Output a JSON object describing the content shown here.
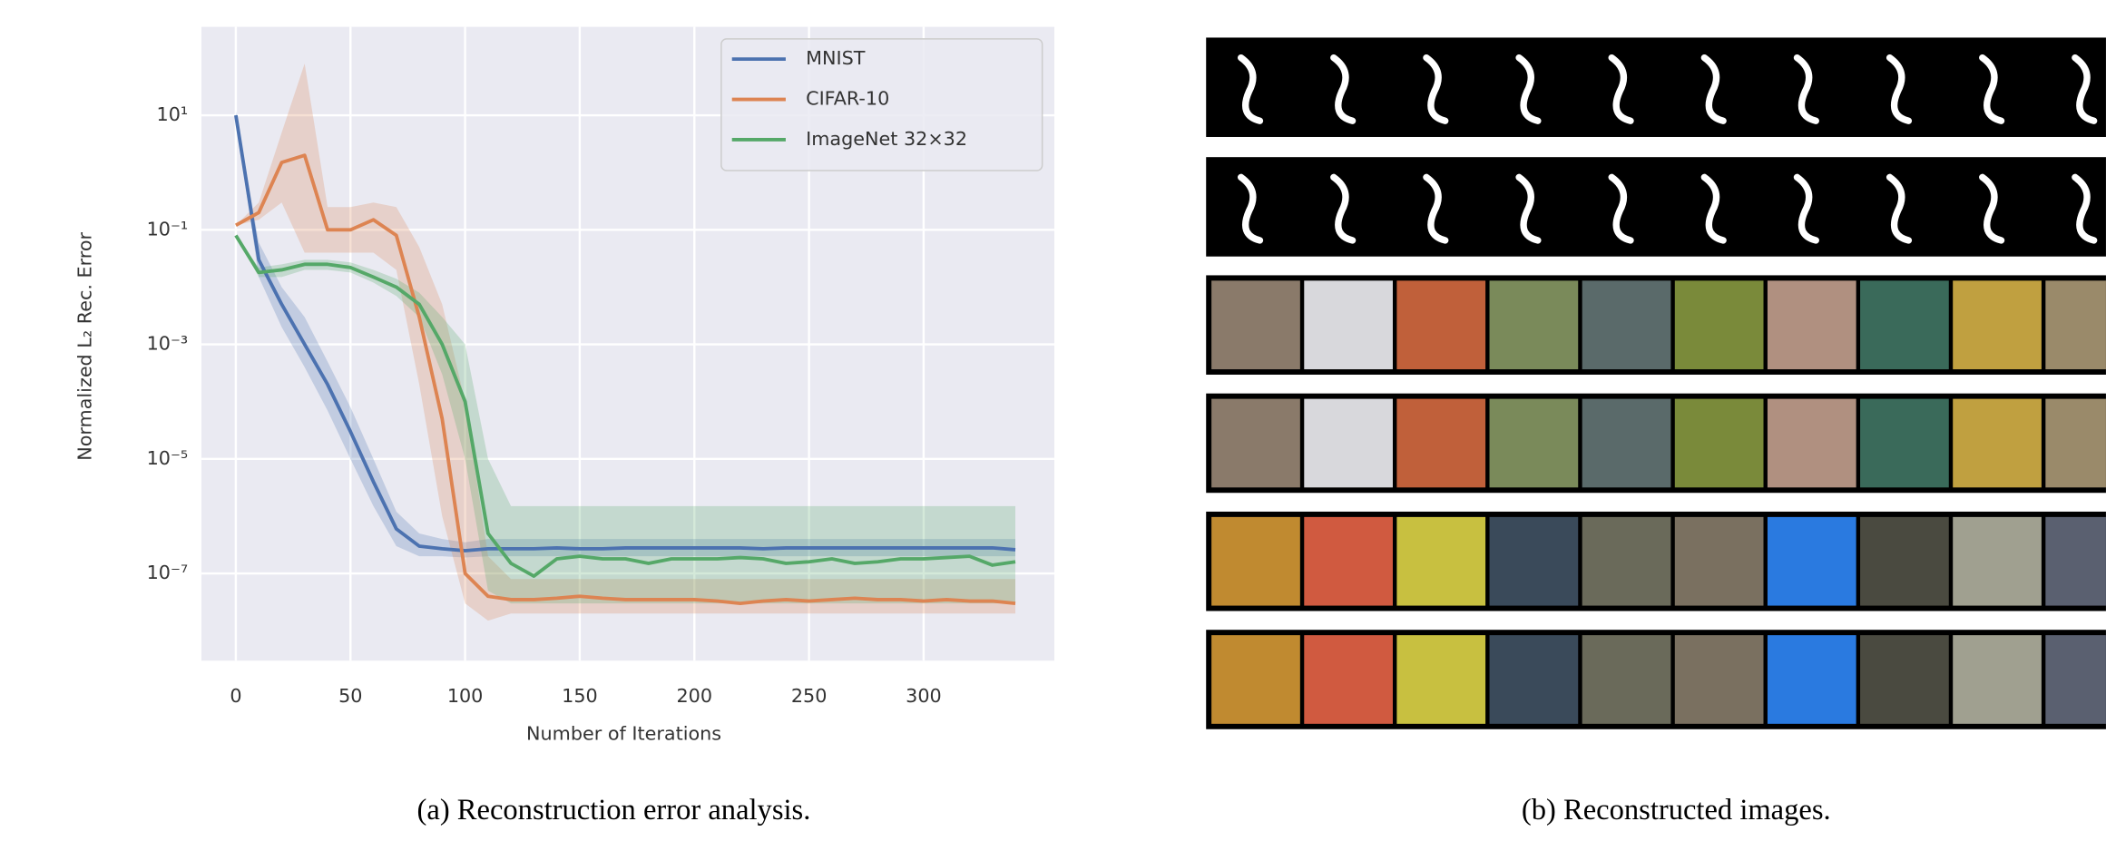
{
  "chart_data": {
    "type": "line",
    "y_label": "Normalized L₂ Rec. Error",
    "x_label": "Number of Iterations",
    "y_scale": "log",
    "grid": true,
    "legend": "upper right",
    "xlim": [
      -15,
      357
    ],
    "ylim": [
      3e-09,
      350
    ],
    "xticks": [
      0,
      50,
      100,
      150,
      200,
      250,
      300
    ],
    "yticks": [
      {
        "value": 10,
        "label": "10¹"
      },
      {
        "value": 0.1,
        "label": "10⁻¹"
      },
      {
        "value": 0.001,
        "label": "10⁻³"
      },
      {
        "value": 1e-05,
        "label": "10⁻⁵"
      },
      {
        "value": 1e-07,
        "label": "10⁻⁷"
      }
    ],
    "x": [
      0,
      10,
      20,
      30,
      40,
      50,
      60,
      70,
      80,
      90,
      100,
      110,
      120,
      130,
      140,
      150,
      160,
      170,
      180,
      190,
      200,
      210,
      220,
      230,
      240,
      250,
      260,
      270,
      280,
      290,
      300,
      310,
      320,
      330,
      340
    ],
    "series": [
      {
        "name": "MNIST",
        "color": "#4c72b0",
        "values": [
          10,
          0.03,
          0.005,
          0.001,
          0.0002,
          3e-05,
          4e-06,
          6e-07,
          3e-07,
          2.7e-07,
          2.5e-07,
          2.7e-07,
          2.7e-07,
          2.7e-07,
          2.8e-07,
          2.7e-07,
          2.7e-07,
          2.8e-07,
          2.8e-07,
          2.8e-07,
          2.8e-07,
          2.8e-07,
          2.8e-07,
          2.7e-07,
          2.8e-07,
          2.8e-07,
          2.8e-07,
          2.8e-07,
          2.8e-07,
          2.8e-07,
          2.8e-07,
          2.8e-07,
          2.8e-07,
          2.8e-07,
          2.6e-07
        ],
        "lower": [
          8,
          0.015,
          0.002,
          0.0004,
          7e-05,
          1e-05,
          1.5e-06,
          3e-07,
          2e-07,
          2e-07,
          1.9e-07,
          2e-07,
          2e-07,
          2e-07,
          2e-07,
          2e-07,
          2e-07,
          2e-07,
          2e-07,
          2e-07,
          2e-07,
          2e-07,
          2e-07,
          2e-07,
          2e-07,
          2e-07,
          2e-07,
          2e-07,
          2e-07,
          2e-07,
          2e-07,
          2e-07,
          2e-07,
          2e-07,
          2e-07
        ],
        "upper": [
          12,
          0.06,
          0.01,
          0.003,
          0.0005,
          8e-05,
          1e-05,
          1.2e-06,
          5e-07,
          4e-07,
          3.5e-07,
          4e-07,
          4e-07,
          4e-07,
          4e-07,
          4e-07,
          4e-07,
          4e-07,
          4e-07,
          4e-07,
          4e-07,
          4e-07,
          4e-07,
          4e-07,
          4e-07,
          4e-07,
          4e-07,
          4e-07,
          4e-07,
          4e-07,
          4e-07,
          4e-07,
          4e-07,
          4e-07,
          4e-07
        ]
      },
      {
        "name": "CIFAR-10",
        "color": "#dd8452",
        "values": [
          0.12,
          0.2,
          1.5,
          2,
          0.1,
          0.1,
          0.15,
          0.08,
          0.003,
          5e-05,
          1e-07,
          4e-08,
          3.5e-08,
          3.5e-08,
          3.7e-08,
          4e-08,
          3.7e-08,
          3.5e-08,
          3.5e-08,
          3.5e-08,
          3.5e-08,
          3.3e-08,
          3e-08,
          3.3e-08,
          3.5e-08,
          3.3e-08,
          3.5e-08,
          3.7e-08,
          3.5e-08,
          3.5e-08,
          3.3e-08,
          3.5e-08,
          3.3e-08,
          3.3e-08,
          3e-08
        ],
        "lower": [
          0.12,
          0.15,
          0.3,
          0.04,
          0.04,
          0.04,
          0.04,
          0.02,
          0.0002,
          1e-06,
          3e-08,
          1.5e-08,
          2e-08,
          2e-08,
          2e-08,
          2e-08,
          2e-08,
          2e-08,
          2e-08,
          2e-08,
          2e-08,
          2e-08,
          2e-08,
          2e-08,
          2e-08,
          2e-08,
          2e-08,
          2e-08,
          2e-08,
          2e-08,
          2e-08,
          2e-08,
          2e-08,
          2e-08,
          2e-08
        ],
        "upper": [
          0.12,
          0.3,
          5,
          80,
          0.25,
          0.25,
          0.3,
          0.25,
          0.05,
          0.005,
          0.0001,
          2e-07,
          8e-08,
          8e-08,
          8e-08,
          8e-08,
          8e-08,
          8e-08,
          8e-08,
          8e-08,
          8e-08,
          8e-08,
          8e-08,
          8e-08,
          8e-08,
          8e-08,
          8e-08,
          8e-08,
          8e-08,
          8e-08,
          8e-08,
          8e-08,
          8e-08,
          8e-08,
          8e-08
        ]
      },
      {
        "name": "ImageNet 32×32",
        "color": "#55a868",
        "values": [
          0.08,
          0.018,
          0.02,
          0.025,
          0.025,
          0.022,
          0.015,
          0.01,
          0.005,
          0.001,
          0.0001,
          5e-07,
          1.5e-07,
          9e-08,
          1.8e-07,
          2e-07,
          1.8e-07,
          1.8e-07,
          1.5e-07,
          1.8e-07,
          1.8e-07,
          1.8e-07,
          1.9e-07,
          1.8e-07,
          1.5e-07,
          1.6e-07,
          1.8e-07,
          1.5e-07,
          1.6e-07,
          1.8e-07,
          1.8e-07,
          1.9e-07,
          2e-07,
          1.4e-07,
          1.6e-07
        ],
        "lower": [
          0.08,
          0.015,
          0.015,
          0.02,
          0.02,
          0.018,
          0.012,
          0.007,
          0.003,
          0.0003,
          1e-05,
          5e-08,
          3e-08,
          3e-08,
          3e-08,
          3e-08,
          3e-08,
          3e-08,
          3e-08,
          3e-08,
          3e-08,
          3e-08,
          3e-08,
          3e-08,
          3e-08,
          3e-08,
          3e-08,
          3e-08,
          3e-08,
          3e-08,
          3e-08,
          3e-08,
          3e-08,
          3e-08,
          3e-08
        ],
        "upper": [
          0.08,
          0.022,
          0.025,
          0.03,
          0.03,
          0.027,
          0.02,
          0.014,
          0.008,
          0.003,
          0.001,
          1e-05,
          1.5e-06,
          1.5e-06,
          1.5e-06,
          1.5e-06,
          1.5e-06,
          1.5e-06,
          1.5e-06,
          1.5e-06,
          1.5e-06,
          1.5e-06,
          1.5e-06,
          1.5e-06,
          1.5e-06,
          1.5e-06,
          1.5e-06,
          1.5e-06,
          1.5e-06,
          1.5e-06,
          1.5e-06,
          1.5e-06,
          1.5e-06,
          1.5e-06,
          1.5e-06
        ]
      }
    ]
  },
  "captions": {
    "a": "(a) Reconstruction error analysis.",
    "b": "(b) Reconstructed images."
  }
}
